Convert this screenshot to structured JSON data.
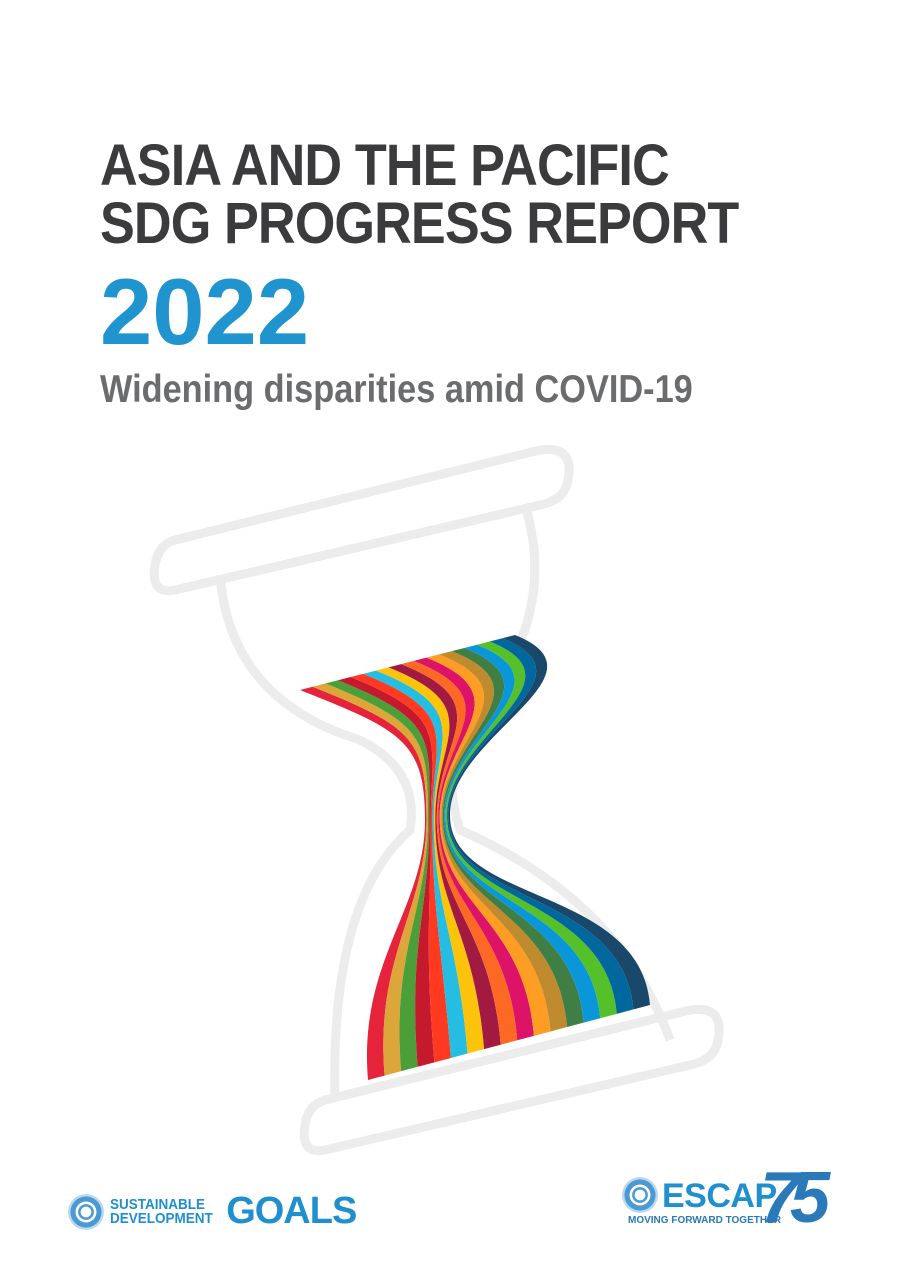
{
  "title_line1": "ASIA AND THE PACIFIC",
  "title_line2": "SDG PROGRESS REPORT",
  "year": "2022",
  "subtitle": "Widening disparities amid COVID-19",
  "colors": {
    "title": "#3b3b3d",
    "accent": "#1f94cf",
    "subtitle": "#6b6c6e"
  },
  "stripe_colors": [
    "#e5243b",
    "#dda63a",
    "#4c9f38",
    "#c5192d",
    "#ff3a21",
    "#26bde2",
    "#fcc30b",
    "#a21942",
    "#fd6925",
    "#dd1367",
    "#fd9d24",
    "#bf8b2e",
    "#3f7e44",
    "#0a97d9",
    "#56c02b",
    "#00689d",
    "#19486a"
  ],
  "logos": {
    "sdg_line1": "SUSTAINABLE",
    "sdg_line2": "DEVELOPMENT",
    "sdg_big": "GOALS",
    "escap_name": "ESCAP",
    "escap_tagline": "MOVING FORWARD TOGETHER",
    "escap_number": "75"
  }
}
